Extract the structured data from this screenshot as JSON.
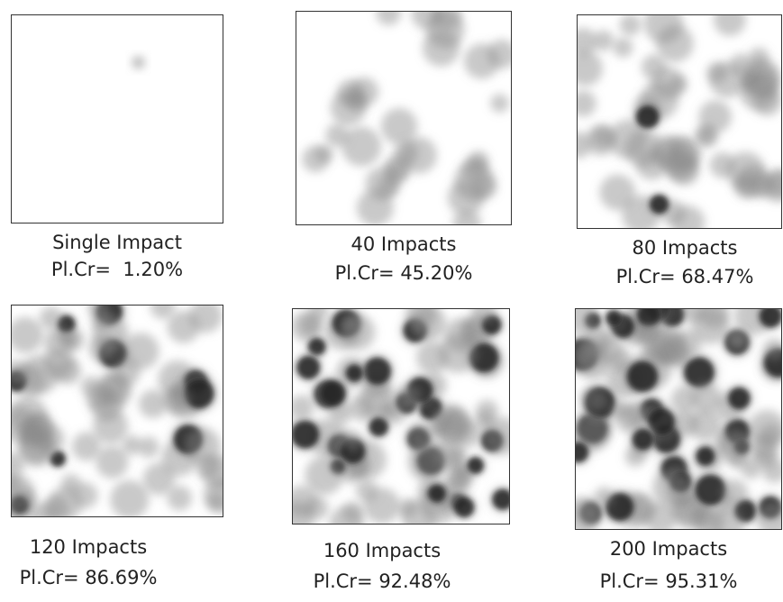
{
  "panels": [
    {
      "label": "Single Impact",
      "coverage": "Pl.Cr=  1.20%"
    },
    {
      "label": "40 Impacts",
      "coverage": "Pl.Cr= 45.20%"
    },
    {
      "label": "80 Impacts",
      "coverage": "Pl.Cr= 68.47%"
    },
    {
      "label": "120 Impacts",
      "coverage": "Pl.Cr= 86.69%"
    },
    {
      "label": "160 Impacts",
      "coverage": "Pl.Cr= 92.48%"
    },
    {
      "label": "200 Impacts",
      "coverage": "Pl.Cr= 95.31%"
    }
  ]
}
